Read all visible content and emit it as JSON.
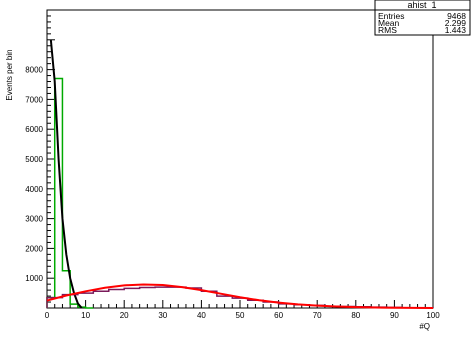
{
  "chart_data": {
    "type": "line",
    "title": "",
    "xlabel": "#Q",
    "ylabel": "Events per bin",
    "xlim": [
      0,
      100
    ],
    "ylim": [
      0,
      10000
    ],
    "grid": false,
    "x_ticks": [
      "0",
      "10",
      "20",
      "30",
      "40",
      "50",
      "60",
      "70",
      "80",
      "90",
      "100"
    ],
    "y_ticks": [
      "1000",
      "2000",
      "3000",
      "4000",
      "5000",
      "6000",
      "7000",
      "8000"
    ],
    "stats_box": {
      "name": "ahist_1",
      "rows": [
        {
          "label": "Entries",
          "value": "9468"
        },
        {
          "label": "Mean",
          "value": "2.299"
        },
        {
          "label": "RMS",
          "value": "1.443"
        }
      ]
    },
    "series": [
      {
        "color": "#00aa00",
        "style": "histogram",
        "bin_width": 2,
        "x": [
          0,
          2,
          4,
          6,
          8,
          10
        ],
        "values": [
          350,
          7700,
          1250,
          130,
          30,
          0
        ]
      },
      {
        "color": "#000000",
        "style": "curve",
        "x": [
          1.0,
          2.0,
          3.0,
          4.0,
          5.0,
          6.0,
          7.0,
          8.0,
          9.0
        ],
        "values": [
          9000,
          7600,
          5000,
          3000,
          1800,
          1000,
          500,
          150,
          0
        ]
      },
      {
        "color": "#7a1a5a",
        "style": "histogram",
        "bin_width": 4,
        "x": [
          0,
          4,
          8,
          12,
          16,
          20,
          24,
          28,
          32,
          36,
          40,
          44,
          48,
          52,
          56,
          60,
          64,
          68,
          72,
          76,
          80,
          84,
          88,
          92,
          96
        ],
        "values": [
          350,
          450,
          500,
          560,
          620,
          660,
          690,
          700,
          700,
          670,
          560,
          400,
          330,
          260,
          200,
          140,
          110,
          90,
          60,
          50,
          40,
          30,
          20,
          10,
          5
        ]
      },
      {
        "color": "#ff0000",
        "style": "curve",
        "x": [
          0,
          5,
          10,
          15,
          20,
          25,
          30,
          35,
          40,
          45,
          50,
          55,
          60,
          65,
          70,
          75,
          80,
          85,
          90,
          95,
          100
        ],
        "values": [
          250,
          420,
          560,
          680,
          760,
          790,
          770,
          700,
          600,
          480,
          360,
          260,
          180,
          120,
          80,
          50,
          30,
          15,
          8,
          4,
          2
        ]
      }
    ]
  }
}
